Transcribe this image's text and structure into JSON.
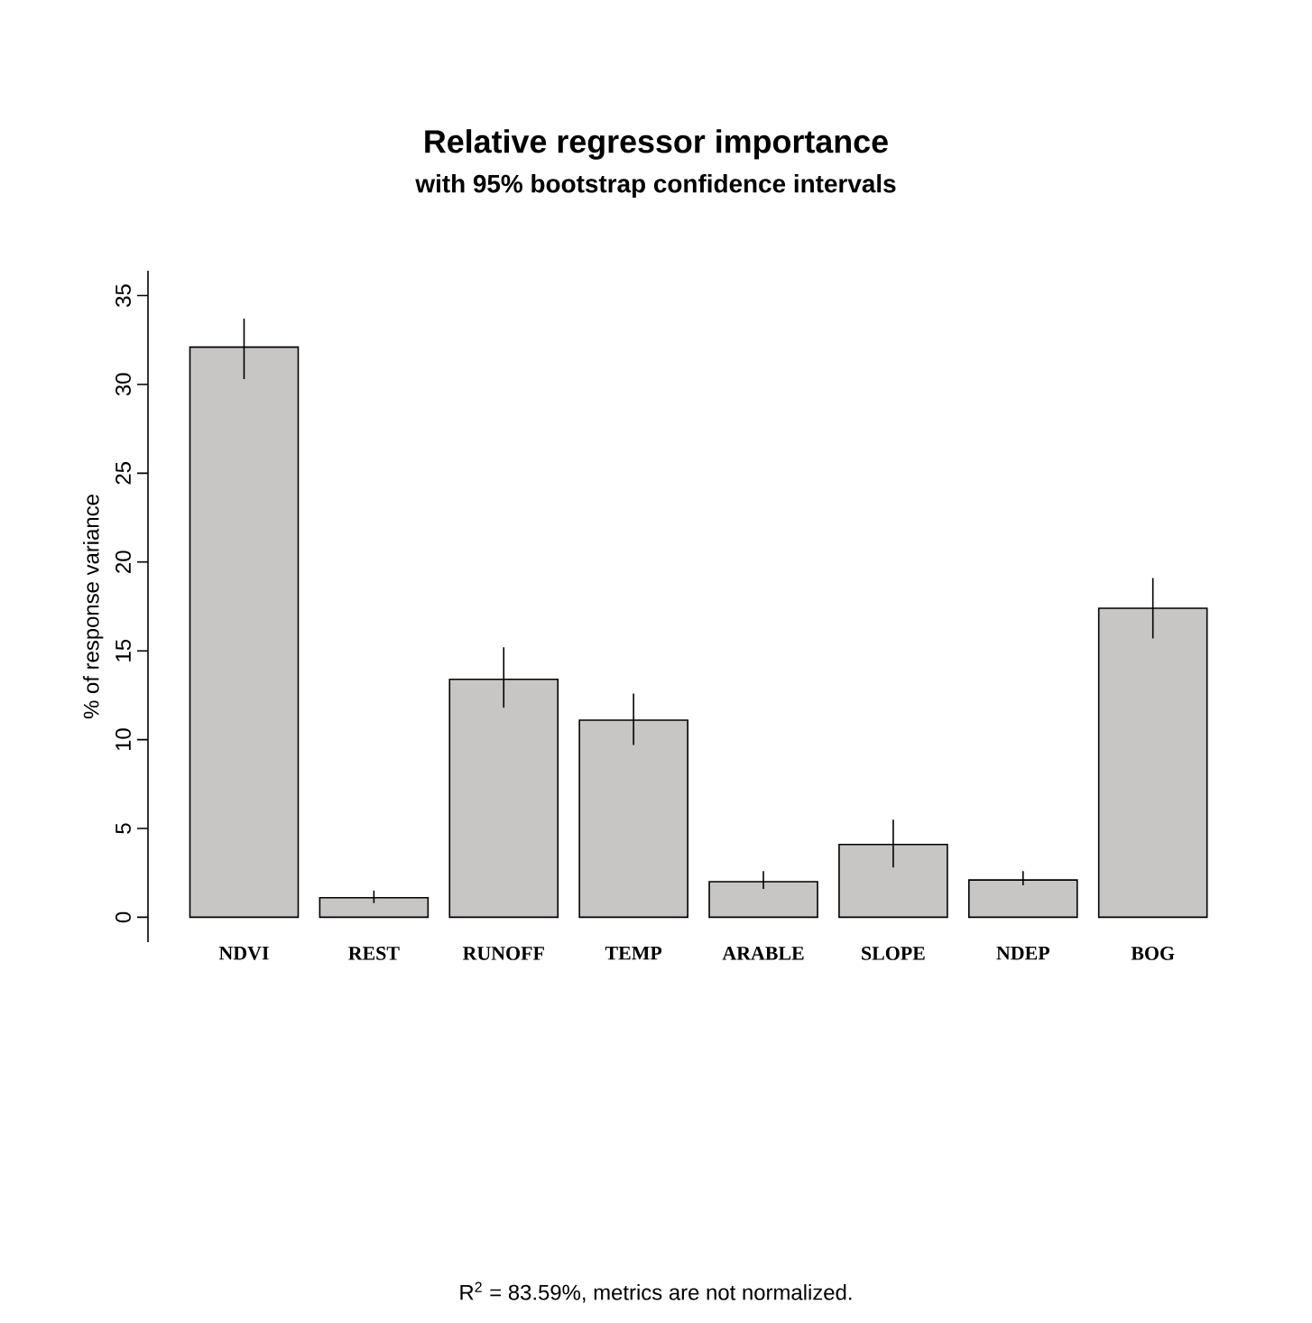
{
  "chart_data": {
    "type": "bar",
    "title": "Relative regressor importance",
    "subtitle": "with 95% bootstrap confidence intervals",
    "ylabel": "% of response variance",
    "categories": [
      "NDVI",
      "REST",
      "RUNOFF",
      "TEMP",
      "ARABLE",
      "SLOPE",
      "NDEP",
      "BOG"
    ],
    "values": [
      32.1,
      1.1,
      13.4,
      11.1,
      2.0,
      4.1,
      2.1,
      17.4
    ],
    "errors": [
      [
        30.3,
        33.7
      ],
      [
        0.8,
        1.5
      ],
      [
        11.8,
        15.2
      ],
      [
        9.7,
        12.6
      ],
      [
        1.6,
        2.6
      ],
      [
        2.8,
        5.5
      ],
      [
        1.8,
        2.6
      ],
      [
        15.7,
        19.1
      ]
    ],
    "color": "#c8c5c5",
    "ylim": [
      -1.4,
      36.4
    ],
    "yticks": [
      0,
      5,
      10,
      15,
      20,
      25,
      30,
      35
    ],
    "grid": false,
    "annotations": [
      "R$^{2}$ = 83.59%, metrics are not normalized."
    ]
  }
}
